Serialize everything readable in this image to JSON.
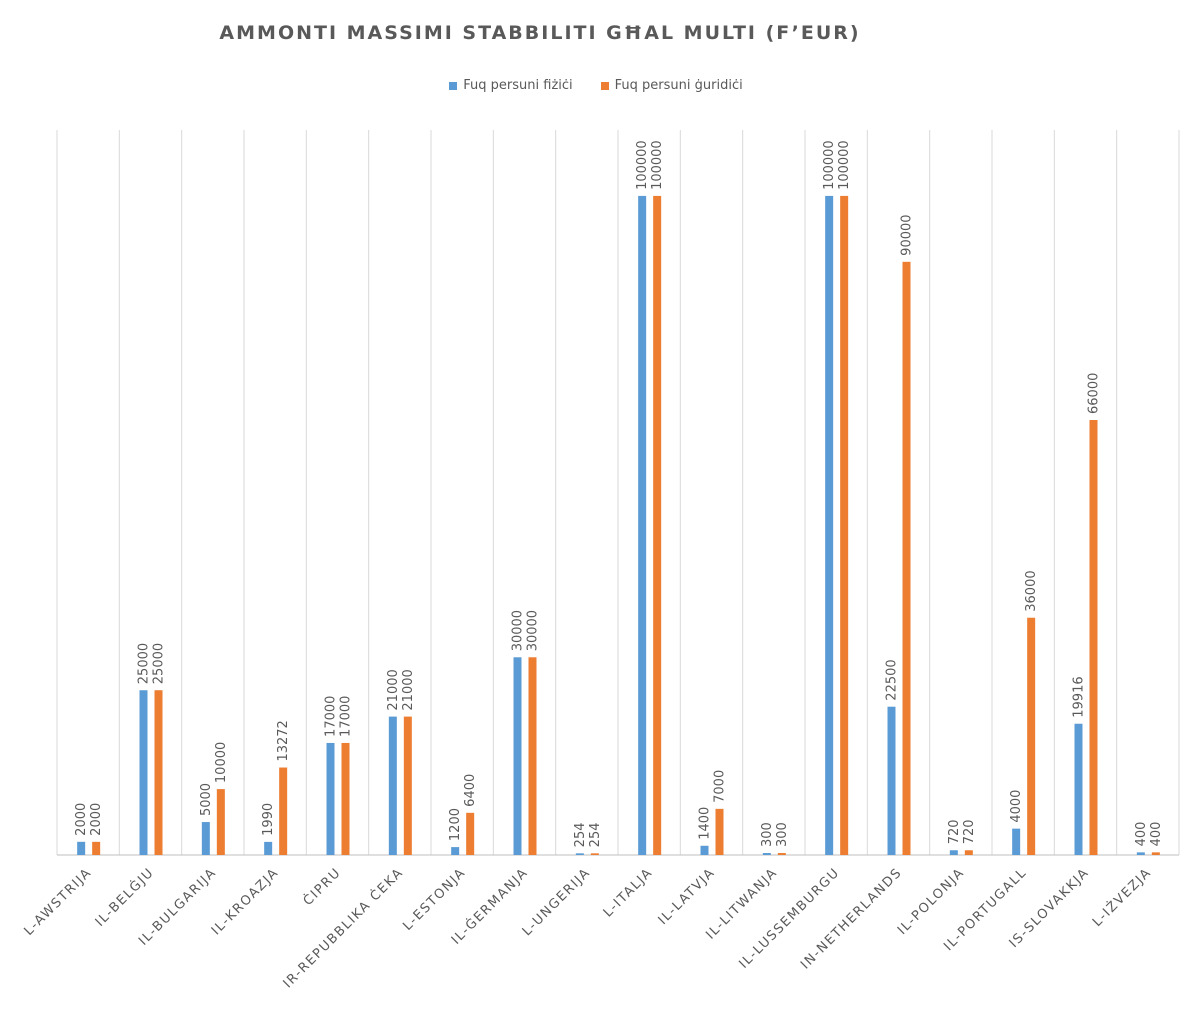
{
  "chart_data": {
    "type": "bar",
    "title": "AMMONTI MASSIMI STABBILITI GĦAL MULTI (F’EUR)",
    "xlabel": "",
    "ylabel": "",
    "ylim": [
      0,
      110000
    ],
    "grid": "vertical category separators",
    "legend_position": "top",
    "categories": [
      "L-AWSTRIJA",
      "IL-BELĠJU",
      "IL-BULGARIJA",
      "IL-KROAZJA",
      "ĊIPRU",
      "IR-REPUBBLIKA ĊEKA",
      "L-ESTONJA",
      "IL-ĠERMANJA",
      "L-UNGERIJA",
      "L-ITALJA",
      "IL-LATVJA",
      "IL-LITWANJA",
      "IL-LUSSEMBURGU",
      "IN-NETHERLANDS",
      "IL-POLONJA",
      "IL-PORTUGALL",
      "IS-SLOVAKKJA",
      "L-IŻVEZJA"
    ],
    "series": [
      {
        "name": "Fuq persuni fiżiċi",
        "color": "#5B9BD5",
        "values": [
          2000,
          25000,
          5000,
          1990,
          17000,
          21000,
          1200,
          30000,
          254,
          100000,
          1400,
          300,
          100000,
          22500,
          720,
          4000,
          19916,
          400
        ]
      },
      {
        "name": "Fuq persuni ġuridiċi",
        "color": "#ED7D31",
        "values": [
          2000,
          25000,
          10000,
          13272,
          17000,
          21000,
          6400,
          30000,
          254,
          100000,
          7000,
          300,
          100000,
          90000,
          720,
          36000,
          66000,
          400
        ]
      }
    ]
  }
}
